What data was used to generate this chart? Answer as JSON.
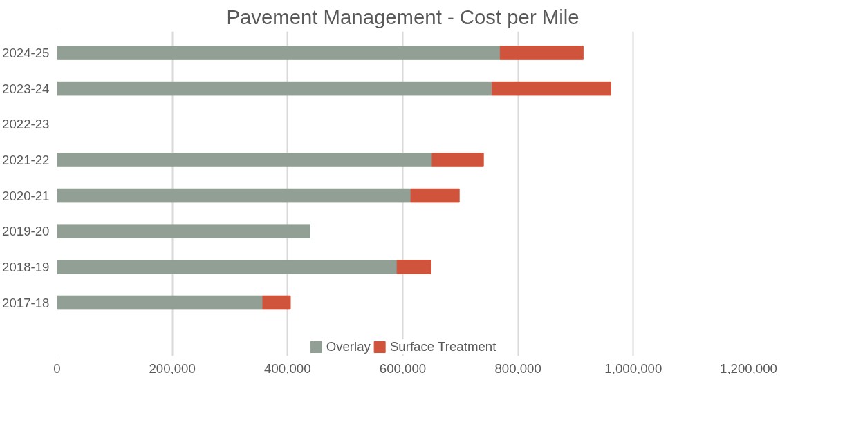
{
  "chart_data": {
    "type": "bar",
    "orientation": "horizontal",
    "stacked": true,
    "title": "Pavement Management - Cost per Mile",
    "categories": [
      "2024-25",
      "2023-24",
      "2022-23",
      "2021-22",
      "2020-21",
      "2019-20",
      "2018-19",
      "2017-18"
    ],
    "series": [
      {
        "name": "Overlay",
        "color": "#919f94",
        "values": [
          769000,
          755000,
          null,
          651000,
          614000,
          439000,
          590000,
          357000
        ]
      },
      {
        "name": "Surface Treatment",
        "color": "#d0533b",
        "values": [
          144000,
          206000,
          null,
          89000,
          84000,
          null,
          59000,
          48000
        ]
      }
    ],
    "xlim": [
      0,
      1200000
    ],
    "xticks": [
      0,
      {
        "value": 200000,
        "label": "200,000"
      },
      {
        "value": 400000,
        "label": "400,000"
      },
      {
        "value": 600000,
        "label": "600,000"
      },
      {
        "value": 800000,
        "label": "800,000"
      },
      {
        "value": 1000000,
        "label": "1,000,000"
      },
      {
        "value": 1200000,
        "label": "1,200,000"
      }
    ],
    "grid": "x",
    "legend": "bottom"
  }
}
